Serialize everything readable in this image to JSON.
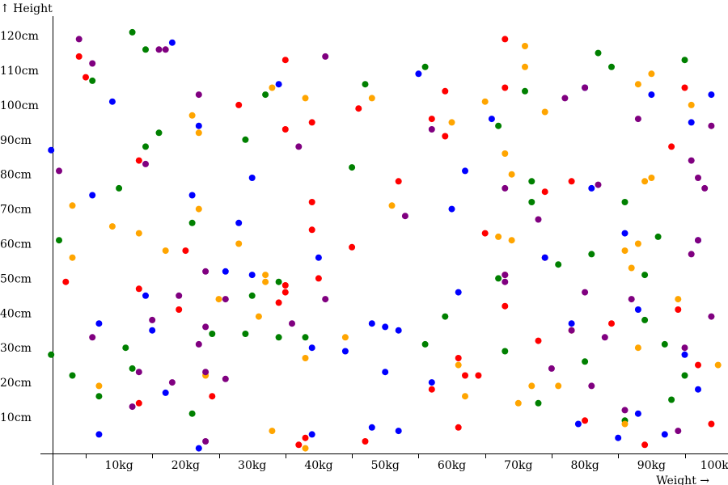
{
  "chart_data": {
    "type": "scatter",
    "title": "",
    "xlabel": "Weight →",
    "ylabel": "↑ Height",
    "x_unit": "kg",
    "y_unit": "cm",
    "xlim": [
      -1.8,
      101.5
    ],
    "ylim": [
      -0.5,
      124
    ],
    "x_ticks": [
      10,
      20,
      30,
      40,
      50,
      60,
      70,
      80,
      90,
      100
    ],
    "x_tick_labels": [
      "10kg",
      "20kg",
      "30kg",
      "40kg",
      "50kg",
      "60kg",
      "70kg",
      "80kg",
      "90kg",
      "100kg"
    ],
    "y_ticks": [
      10,
      20,
      30,
      40,
      50,
      60,
      70,
      80,
      90,
      100,
      110,
      120
    ],
    "y_tick_labels": [
      "10cm",
      "20cm",
      "30cm",
      "40cm",
      "50cm",
      "60cm",
      "70cm",
      "80cm",
      "90cm",
      "100cm",
      "110cm",
      "120cm"
    ],
    "grid": false,
    "legend": "none",
    "series": [
      {
        "color": "#ff0000",
        "points": [
          [
            4,
            114
          ],
          [
            5,
            108
          ],
          [
            2,
            49
          ],
          [
            13,
            47
          ],
          [
            13,
            14
          ],
          [
            13,
            84
          ],
          [
            19,
            41
          ],
          [
            20,
            58
          ],
          [
            24,
            16
          ],
          [
            28,
            100
          ],
          [
            35,
            46
          ],
          [
            34,
            43
          ],
          [
            35,
            113
          ],
          [
            35,
            93
          ],
          [
            35,
            48
          ],
          [
            39,
            72
          ],
          [
            39,
            64
          ],
          [
            39,
            95
          ],
          [
            40,
            50
          ],
          [
            37,
            2
          ],
          [
            38,
            4
          ],
          [
            45,
            59
          ],
          [
            46,
            99
          ],
          [
            47,
            3
          ],
          [
            52,
            78
          ],
          [
            57,
            96
          ],
          [
            57,
            18
          ],
          [
            59,
            104
          ],
          [
            59,
            91
          ],
          [
            61,
            7
          ],
          [
            61,
            27
          ],
          [
            62,
            22
          ],
          [
            64,
            22
          ],
          [
            65,
            63
          ],
          [
            68,
            51
          ],
          [
            68,
            105
          ],
          [
            68,
            42
          ],
          [
            68,
            119
          ],
          [
            73,
            32
          ],
          [
            74,
            56
          ],
          [
            74,
            75
          ],
          [
            78,
            78
          ],
          [
            80,
            9
          ],
          [
            84,
            37
          ],
          [
            89,
            2
          ],
          [
            93,
            88
          ],
          [
            94,
            41
          ],
          [
            95,
            105
          ],
          [
            97,
            25
          ],
          [
            99,
            8
          ]
        ]
      },
      {
        "color": "#008000",
        "points": [
          [
            -0.2,
            28
          ],
          [
            1,
            61
          ],
          [
            3,
            22
          ],
          [
            6,
            107
          ],
          [
            7,
            16
          ],
          [
            10,
            76
          ],
          [
            11,
            30
          ],
          [
            12,
            24
          ],
          [
            12,
            121
          ],
          [
            14,
            116
          ],
          [
            14,
            88
          ],
          [
            16,
            92
          ],
          [
            21,
            11
          ],
          [
            21,
            66
          ],
          [
            24,
            34
          ],
          [
            29,
            34
          ],
          [
            29,
            90
          ],
          [
            30,
            45
          ],
          [
            32,
            103
          ],
          [
            34,
            49
          ],
          [
            34,
            33
          ],
          [
            38,
            33
          ],
          [
            45,
            82
          ],
          [
            47,
            106
          ],
          [
            56,
            111
          ],
          [
            56,
            31
          ],
          [
            59,
            39
          ],
          [
            67,
            94
          ],
          [
            67,
            50
          ],
          [
            68,
            29
          ],
          [
            71,
            104
          ],
          [
            72,
            72
          ],
          [
            72,
            78
          ],
          [
            73,
            14
          ],
          [
            76,
            54
          ],
          [
            80,
            26
          ],
          [
            81,
            57
          ],
          [
            82,
            115
          ],
          [
            84,
            111
          ],
          [
            86,
            9
          ],
          [
            86,
            72
          ],
          [
            89,
            38
          ],
          [
            89,
            51
          ],
          [
            91,
            62
          ],
          [
            92,
            31
          ],
          [
            93,
            15
          ],
          [
            95,
            22
          ],
          [
            95,
            113
          ]
        ]
      },
      {
        "color": "#0000ff",
        "points": [
          [
            -0.2,
            87
          ],
          [
            6,
            74
          ],
          [
            7,
            37
          ],
          [
            7,
            5
          ],
          [
            9,
            101
          ],
          [
            14,
            45
          ],
          [
            15,
            35
          ],
          [
            17,
            17
          ],
          [
            18,
            118
          ],
          [
            21,
            74
          ],
          [
            22,
            94
          ],
          [
            22,
            1
          ],
          [
            26,
            52
          ],
          [
            28,
            66
          ],
          [
            30,
            51
          ],
          [
            30,
            79
          ],
          [
            34,
            106
          ],
          [
            39,
            30
          ],
          [
            39,
            5
          ],
          [
            40,
            56
          ],
          [
            44,
            29
          ],
          [
            48,
            7
          ],
          [
            48,
            37
          ],
          [
            50,
            36
          ],
          [
            50,
            23
          ],
          [
            52,
            35
          ],
          [
            52,
            6
          ],
          [
            55,
            109
          ],
          [
            57,
            20
          ],
          [
            60,
            70
          ],
          [
            61,
            46
          ],
          [
            62,
            81
          ],
          [
            66,
            96
          ],
          [
            74,
            56
          ],
          [
            78,
            37
          ],
          [
            79,
            8
          ],
          [
            80,
            105
          ],
          [
            81,
            76
          ],
          [
            85,
            4
          ],
          [
            86,
            63
          ],
          [
            88,
            41
          ],
          [
            88,
            11
          ],
          [
            90,
            103
          ],
          [
            92,
            5
          ],
          [
            95,
            28
          ],
          [
            96,
            95
          ],
          [
            97,
            61
          ],
          [
            97,
            18
          ],
          [
            99,
            103
          ]
        ]
      },
      {
        "color": "#ffa500",
        "points": [
          [
            3,
            71
          ],
          [
            3,
            56
          ],
          [
            7,
            19
          ],
          [
            9,
            65
          ],
          [
            13,
            63
          ],
          [
            17,
            58
          ],
          [
            21,
            97
          ],
          [
            22,
            92
          ],
          [
            22,
            70
          ],
          [
            23,
            22
          ],
          [
            25,
            44
          ],
          [
            28,
            60
          ],
          [
            31,
            39
          ],
          [
            32,
            49
          ],
          [
            32,
            51
          ],
          [
            33,
            105
          ],
          [
            33,
            6
          ],
          [
            38,
            102
          ],
          [
            38,
            1
          ],
          [
            38,
            27
          ],
          [
            44,
            33
          ],
          [
            48,
            102
          ],
          [
            51,
            71
          ],
          [
            60,
            95
          ],
          [
            61,
            25
          ],
          [
            62,
            16
          ],
          [
            65,
            101
          ],
          [
            67,
            62
          ],
          [
            68,
            86
          ],
          [
            69,
            80
          ],
          [
            69,
            61
          ],
          [
            70,
            14
          ],
          [
            71,
            111
          ],
          [
            71,
            117
          ],
          [
            72,
            19
          ],
          [
            74,
            98
          ],
          [
            76,
            19
          ],
          [
            78,
            35
          ],
          [
            86,
            58
          ],
          [
            86,
            8
          ],
          [
            87,
            53
          ],
          [
            88,
            106
          ],
          [
            88,
            60
          ],
          [
            88,
            30
          ],
          [
            89,
            78
          ],
          [
            90,
            79
          ],
          [
            90,
            109
          ],
          [
            94,
            44
          ],
          [
            96,
            100
          ],
          [
            100,
            25
          ]
        ]
      },
      {
        "color": "#800080",
        "points": [
          [
            1,
            81
          ],
          [
            4,
            119
          ],
          [
            6,
            112
          ],
          [
            6,
            33
          ],
          [
            12,
            13
          ],
          [
            13,
            23
          ],
          [
            14,
            83
          ],
          [
            15,
            38
          ],
          [
            16,
            116
          ],
          [
            17,
            116
          ],
          [
            18,
            20
          ],
          [
            19,
            45
          ],
          [
            22,
            103
          ],
          [
            22,
            31
          ],
          [
            23,
            52
          ],
          [
            23,
            36
          ],
          [
            23,
            23
          ],
          [
            23,
            3
          ],
          [
            26,
            44
          ],
          [
            26,
            21
          ],
          [
            36,
            37
          ],
          [
            37,
            88
          ],
          [
            41,
            114
          ],
          [
            41,
            44
          ],
          [
            53,
            68
          ],
          [
            57,
            93
          ],
          [
            68,
            76
          ],
          [
            68,
            51
          ],
          [
            68,
            49
          ],
          [
            73,
            67
          ],
          [
            75,
            24
          ],
          [
            77,
            102
          ],
          [
            78,
            35
          ],
          [
            80,
            46
          ],
          [
            80,
            105
          ],
          [
            81,
            19
          ],
          [
            82,
            77
          ],
          [
            83,
            33
          ],
          [
            86,
            12
          ],
          [
            87,
            44
          ],
          [
            88,
            96
          ],
          [
            94,
            6
          ],
          [
            95,
            30
          ],
          [
            96,
            84
          ],
          [
            96,
            57
          ],
          [
            97,
            79
          ],
          [
            97,
            61
          ],
          [
            98,
            76
          ],
          [
            99,
            39
          ],
          [
            99,
            94
          ]
        ]
      }
    ]
  }
}
